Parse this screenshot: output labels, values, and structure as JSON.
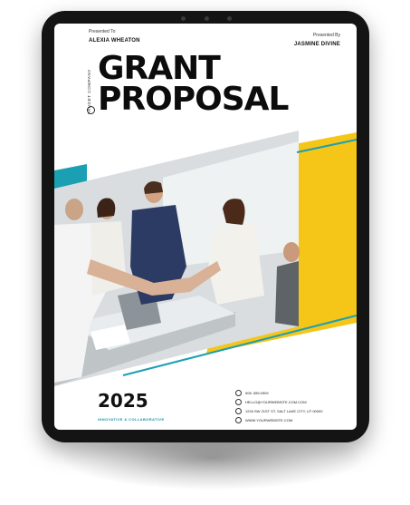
{
  "presented_to": {
    "label": "Presented To",
    "name": "ALEXIA WHEATON"
  },
  "presented_by": {
    "label": "Presented By",
    "name": "JASMINE DIVINE"
  },
  "company": "FAUGET COMPANY",
  "title": {
    "line1": "GRANT",
    "line2": "PROPOSAL"
  },
  "year": "2025",
  "tagline": "INNOVATIVE & COLLABORATIVE",
  "contacts": [
    {
      "icon": "phone-icon",
      "text": "908. 555.0909"
    },
    {
      "icon": "email-icon",
      "text": "HELLO@YOURWEBSITE.COM.COM"
    },
    {
      "icon": "location-icon",
      "text": "1234 SW 21ST ST, SALT LAKE CITY, UT 00000"
    },
    {
      "icon": "web-icon",
      "text": "WWW.YOURWEBSITE.COM"
    }
  ],
  "colors": {
    "accent_teal": "#1b9fb3",
    "accent_yellow": "#f5c518",
    "frame": "#141414"
  }
}
